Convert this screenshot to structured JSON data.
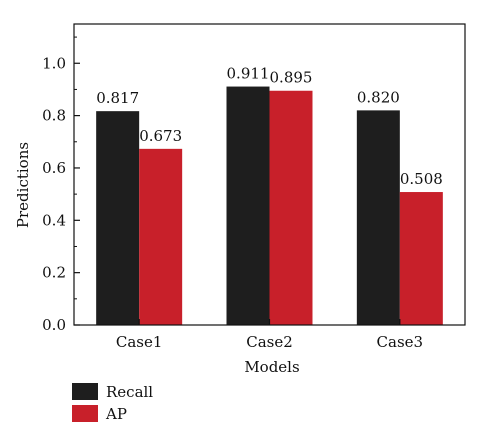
{
  "chart_data": {
    "type": "bar",
    "title": "",
    "xlabel": "Models",
    "ylabel": "Predictions",
    "categories": [
      "Case1",
      "Case2",
      "Case3"
    ],
    "ylim": [
      0,
      1.15
    ],
    "yticks": [
      "0.0",
      "0.2",
      "0.4",
      "0.6",
      "0.8",
      "1.0"
    ],
    "grid": false,
    "legend_position": "bottom-left",
    "series": [
      {
        "name": "Recall",
        "color": "#1e1e1e",
        "values": [
          0.817,
          0.911,
          0.82
        ],
        "labels": [
          "0.817",
          "0.911",
          "0.820"
        ]
      },
      {
        "name": "AP",
        "color": "#c8202a",
        "values": [
          0.673,
          0.895,
          0.508
        ],
        "labels": [
          "0.673",
          "0.895",
          "0.508"
        ]
      }
    ]
  }
}
